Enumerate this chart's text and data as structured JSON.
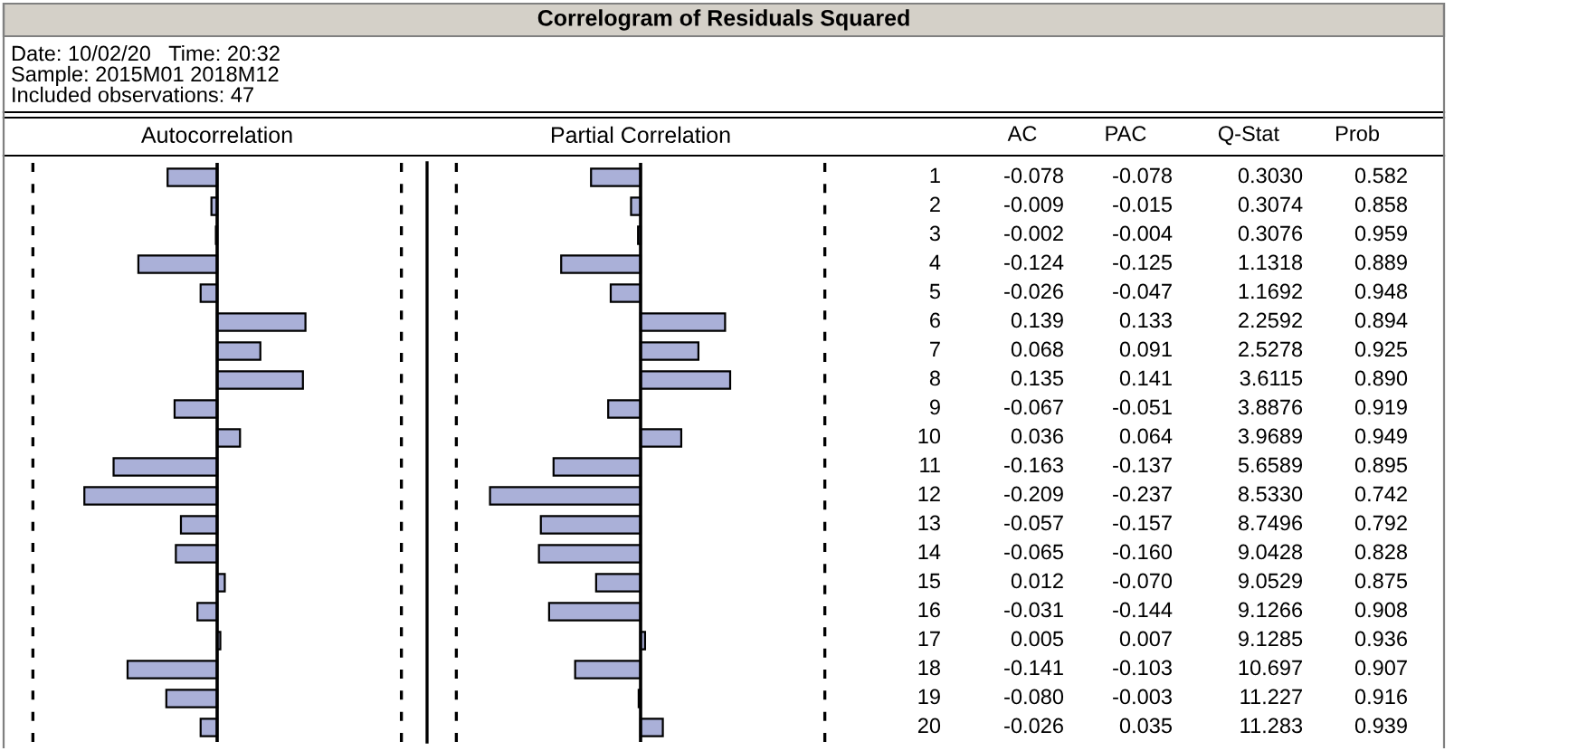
{
  "chart_data": [
    {
      "type": "other",
      "title": "Correlogram of Residuals Squared",
      "subtitle": "Date: 10/02/20   Time: 20:32\nSample: 2015M01 2018M12\nIncluded observations: 47"
    },
    {
      "type": "bar",
      "orientation": "horizontal",
      "xlabel": "Autocorrelation",
      "categories": [
        "1",
        "2",
        "3",
        "4",
        "5",
        "6",
        "7",
        "8",
        "9",
        "10",
        "11",
        "12",
        "13",
        "14",
        "15",
        "16",
        "17",
        "18",
        "19",
        "20"
      ],
      "series": [
        {
          "name": "AC",
          "color": "#aab0d8",
          "values": [
            -0.078,
            -0.009,
            -0.002,
            -0.124,
            -0.026,
            0.139,
            0.068,
            0.135,
            -0.067,
            0.036,
            -0.163,
            -0.209,
            -0.057,
            -0.065,
            0.012,
            -0.031,
            0.005,
            -0.141,
            -0.08,
            -0.026
          ],
          "value_labels": [
            "-0.078",
            "-0.009",
            "-0.002",
            "-0.124",
            "-0.026",
            "0.139",
            "0.068",
            "0.135",
            "-0.067",
            "0.036",
            "-0.163",
            "-0.209",
            "-0.057",
            "-0.065",
            "0.012",
            "-0.031",
            "0.005",
            "-0.141",
            "-0.080",
            "-0.026"
          ]
        }
      ],
      "tick_labels": "y",
      "ref_lines": [
        {
          "axis": "x",
          "value": -0.29,
          "line_style": "dashed"
        },
        {
          "axis": "x",
          "value": 0.29,
          "line_style": "dashed"
        }
      ]
    },
    {
      "type": "bar",
      "orientation": "horizontal",
      "xlabel": "Partial Correlation",
      "categories": [
        null,
        null,
        null,
        null,
        null,
        null,
        null,
        null,
        null,
        null,
        null,
        null,
        null,
        null,
        null,
        null,
        null,
        null,
        null,
        null
      ],
      "series": [
        {
          "name": "PAC",
          "color": "#aab0d8",
          "values": [
            -0.078,
            -0.015,
            -0.004,
            -0.125,
            -0.047,
            0.133,
            0.091,
            0.141,
            -0.051,
            0.064,
            -0.137,
            -0.237,
            -0.157,
            -0.16,
            -0.07,
            -0.144,
            0.007,
            -0.103,
            -0.003,
            0.035
          ],
          "value_labels": [
            "-0.078",
            "-0.015",
            "-0.004",
            "-0.125",
            "-0.047",
            "0.133",
            "0.091",
            "0.141",
            "-0.051",
            "0.064",
            "-0.137",
            "-0.237",
            "-0.157",
            "-0.160",
            "-0.070",
            "-0.144",
            "0.007",
            "-0.103",
            "-0.003",
            "0.035"
          ]
        }
      ],
      "tick_labels": false,
      "ref_lines": [
        {
          "axis": "x",
          "value": -0.29,
          "line_style": "dashed"
        },
        {
          "axis": "x",
          "value": 0.29,
          "line_style": "dashed"
        }
      ]
    },
    {
      "type": "other",
      "annotations": [
        "Q-Stat",
        "0.3030",
        "0.3074",
        "0.3076",
        "1.1318",
        "1.1692",
        "2.2592",
        "2.5278",
        "3.6115",
        "3.8876",
        "3.9689",
        "5.6589",
        "8.5330",
        "8.7496",
        "9.0428",
        "9.0529",
        "9.1266",
        "9.1285",
        "10.697",
        "11.227",
        "11.283",
        "Prob",
        "0.582",
        "0.858",
        "0.959",
        "0.889",
        "0.948",
        "0.894",
        "0.925",
        "0.890",
        "0.919",
        "0.949",
        "0.895",
        "0.742",
        "0.792",
        "0.828",
        "0.875",
        "0.908",
        "0.936",
        "0.907",
        "0.916",
        "0.939"
      ]
    }
  ]
}
